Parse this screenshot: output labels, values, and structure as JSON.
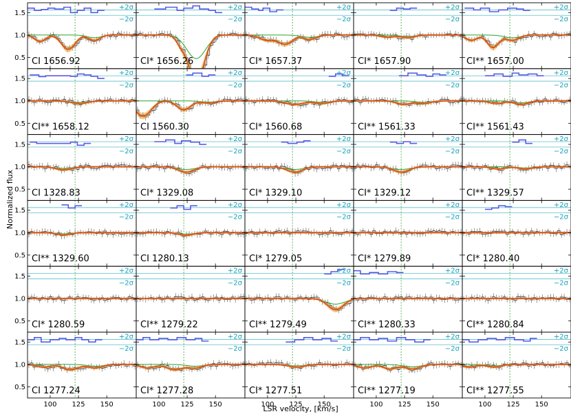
{
  "chart_data": {
    "type": "line",
    "xlabel": "LSR velocity, [km/s]",
    "ylabel": "Normalized flux",
    "xlim": [
      80,
      176
    ],
    "ylim": [
      0.25,
      1.72
    ],
    "xticks": [
      100,
      125,
      150
    ],
    "yticks": [
      0.5,
      1.0,
      1.5
    ],
    "grid": false,
    "sigma_labels": {
      "plus": "+2σ",
      "minus": "−2σ"
    },
    "residual_band": {
      "plus": 1.56,
      "minus": 1.44
    },
    "component_velocity": 122,
    "colors": {
      "data": "#333333",
      "model": "#d95319",
      "model_band": "#e8a33b",
      "component": "#2ca02c",
      "residual": "#5a5ae6",
      "sigma": "#17a2b8",
      "component_marker": "#2ca02c"
    },
    "rows": 6,
    "cols": 5,
    "panels": [
      {
        "label": "CI 1656.92",
        "lines": [
          {
            "v": 91,
            "d": 0.14,
            "w": 5
          },
          {
            "v": 116,
            "d": 0.32,
            "w": 6
          },
          {
            "v": 139,
            "d": 0.12,
            "w": 5
          }
        ],
        "resid": [
          [
            80,
            1.6
          ],
          [
            86,
            1.55
          ],
          [
            92,
            1.57
          ],
          [
            98,
            1.6
          ],
          [
            104,
            1.58
          ],
          [
            112,
            1.62
          ],
          [
            118,
            1.5
          ],
          [
            124,
            1.55
          ],
          [
            130,
            1.6
          ],
          [
            136,
            1.5
          ],
          [
            142,
            1.55
          ]
        ]
      },
      {
        "label": "CI* 1656.26",
        "lines": [
          {
            "v": 119,
            "d": 0.15,
            "w": 4
          },
          {
            "v": 133,
            "d": 1.05,
            "w": 7
          }
        ],
        "resid": [
          [
            96,
            1.58
          ],
          [
            106,
            1.62
          ],
          [
            116,
            1.55
          ],
          [
            122,
            1.6
          ],
          [
            130,
            1.65
          ],
          [
            136,
            1.58
          ],
          [
            144,
            1.55
          ],
          [
            150,
            1.5
          ]
        ]
      },
      {
        "label": "CI* 1657.37",
        "lines": [
          {
            "v": 100,
            "d": 0.12,
            "w": 7
          },
          {
            "v": 116,
            "d": 0.2,
            "w": 6
          },
          {
            "v": 137,
            "d": 0.1,
            "w": 6
          }
        ],
        "resid": [
          [
            80,
            1.62
          ],
          [
            86,
            1.58
          ],
          [
            92,
            1.55
          ],
          [
            96,
            1.6
          ],
          [
            102,
            1.52
          ],
          [
            108,
            1.56
          ]
        ]
      },
      {
        "label": "CI* 1657.90",
        "lines": [
          {
            "v": 110,
            "d": 0.05,
            "w": 6
          },
          {
            "v": 128,
            "d": 0.06,
            "w": 6
          }
        ],
        "resid": [
          [
            112,
            1.55
          ],
          [
            118,
            1.6
          ],
          [
            124,
            1.58
          ],
          [
            130,
            1.6
          ]
        ]
      },
      {
        "label": "CI** 1657.00",
        "lines": [
          {
            "v": 88,
            "d": 0.12,
            "w": 5
          },
          {
            "v": 107,
            "d": 0.28,
            "w": 5
          },
          {
            "v": 124,
            "d": 0.12,
            "w": 6
          }
        ],
        "resid": [
          [
            82,
            1.6
          ],
          [
            90,
            1.56
          ],
          [
            96,
            1.6
          ],
          [
            104,
            1.52
          ],
          [
            112,
            1.56
          ],
          [
            120,
            1.6
          ],
          [
            128,
            1.58
          ],
          [
            134,
            1.55
          ]
        ]
      },
      {
        "label": "CI** 1658.12",
        "lines": [
          {
            "v": 126,
            "d": 0.06,
            "w": 7
          }
        ],
        "resid": [
          [
            82,
            1.58
          ],
          [
            90,
            1.54
          ],
          [
            96,
            1.56
          ],
          [
            118,
            1.55
          ],
          [
            124,
            1.6
          ],
          [
            130,
            1.58
          ],
          [
            136,
            1.55
          ],
          [
            142,
            1.5
          ]
        ]
      },
      {
        "label": "CI 1560.30",
        "lines": [
          {
            "v": 86,
            "d": 0.34,
            "w": 7
          },
          {
            "v": 122,
            "d": 0.2,
            "w": 6
          },
          {
            "v": 144,
            "d": 0.05,
            "w": 6
          }
        ],
        "resid": [
          [
            124,
            1.58
          ],
          [
            130,
            1.62
          ],
          [
            138,
            1.55
          ],
          [
            144,
            1.58
          ]
        ]
      },
      {
        "label": "CI* 1560.68",
        "lines": [
          {
            "v": 124,
            "d": 0.08,
            "w": 8
          },
          {
            "v": 148,
            "d": 0.06,
            "w": 6
          }
        ],
        "resid": [
          [
            154,
            1.55
          ],
          [
            160,
            1.6
          ],
          [
            166,
            1.56
          ]
        ]
      },
      {
        "label": "CI** 1561.33",
        "lines": [
          {
            "v": 124,
            "d": 0.08,
            "w": 6
          },
          {
            "v": 142,
            "d": 0.06,
            "w": 6
          }
        ],
        "resid": [
          [
            120,
            1.56
          ],
          [
            128,
            1.62
          ],
          [
            136,
            1.58
          ],
          [
            144,
            1.55
          ],
          [
            150,
            1.6
          ],
          [
            156,
            1.58
          ]
        ]
      },
      {
        "label": "CI** 1561.43",
        "lines": [
          {
            "v": 110,
            "d": 0.06,
            "w": 6
          },
          {
            "v": 132,
            "d": 0.08,
            "w": 6
          }
        ],
        "resid": [
          [
            100,
            1.56
          ],
          [
            108,
            1.6
          ],
          [
            116,
            1.55
          ],
          [
            124,
            1.62
          ],
          [
            130,
            1.58
          ],
          [
            138,
            1.6
          ],
          [
            146,
            1.56
          ]
        ]
      },
      {
        "label": "CI 1328.83",
        "lines": [
          {
            "v": 112,
            "d": 0.07,
            "w": 7
          }
        ],
        "resid": [
          [
            82,
            1.55
          ],
          [
            88,
            1.52
          ],
          [
            118,
            1.55
          ],
          [
            124,
            1.48
          ],
          [
            130,
            1.52
          ]
        ]
      },
      {
        "label": "CI* 1329.08",
        "lines": [
          {
            "v": 124,
            "d": 0.12,
            "w": 7
          }
        ],
        "resid": [
          [
            96,
            1.56
          ],
          [
            106,
            1.6
          ],
          [
            114,
            1.52
          ],
          [
            120,
            1.58
          ],
          [
            128,
            1.55
          ],
          [
            136,
            1.5
          ]
        ]
      },
      {
        "label": "CI* 1329.10",
        "lines": [
          {
            "v": 124,
            "d": 0.12,
            "w": 7
          }
        ],
        "resid": [
          [
            112,
            1.55
          ],
          [
            118,
            1.52
          ],
          [
            126,
            1.55
          ],
          [
            132,
            1.58
          ]
        ]
      },
      {
        "label": "CI* 1329.12",
        "lines": [
          {
            "v": 122,
            "d": 0.12,
            "w": 7
          }
        ],
        "resid": [
          [
            112,
            1.55
          ],
          [
            118,
            1.52
          ],
          [
            124,
            1.56
          ],
          [
            130,
            1.52
          ]
        ]
      },
      {
        "label": "CI** 1329.57",
        "lines": [
          {
            "v": 112,
            "d": 0.05,
            "w": 6
          },
          {
            "v": 136,
            "d": 0.05,
            "w": 6
          }
        ],
        "resid": [
          [
            124,
            1.55
          ],
          [
            130,
            1.6
          ],
          [
            136,
            1.52
          ]
        ]
      },
      {
        "label": "CI** 1329.60",
        "lines": [
          {
            "v": 112,
            "d": 0.05,
            "w": 6
          }
        ],
        "resid": [
          [
            110,
            1.62
          ],
          [
            116,
            1.55
          ],
          [
            122,
            1.6
          ]
        ]
      },
      {
        "label": "CI 1280.13",
        "lines": [
          {
            "v": 124,
            "d": 0.06,
            "w": 6
          }
        ],
        "resid": [
          [
            110,
            1.55
          ],
          [
            116,
            1.6
          ],
          [
            122,
            1.52
          ],
          [
            128,
            1.6
          ]
        ]
      },
      {
        "label": "CI* 1279.05",
        "lines": [],
        "resid": []
      },
      {
        "label": "CI* 1279.89",
        "lines": [],
        "resid": []
      },
      {
        "label": "CI* 1280.40",
        "lines": [],
        "resid": [
          [
            100,
            1.52
          ],
          [
            106,
            1.55
          ],
          [
            112,
            1.6
          ],
          [
            118,
            1.58
          ]
        ]
      },
      {
        "label": "CI* 1280.59",
        "lines": [],
        "resid": []
      },
      {
        "label": "CI** 1279.22",
        "lines": [],
        "resid": []
      },
      {
        "label": "CI** 1279.49",
        "lines": [
          {
            "v": 160,
            "d": 0.25,
            "w": 7
          }
        ],
        "resid": [
          [
            150,
            1.55
          ],
          [
            156,
            1.6
          ],
          [
            162,
            1.65
          ]
        ]
      },
      {
        "label": "CI** 1280.33",
        "lines": [],
        "resid": [
          [
            80,
            1.62
          ],
          [
            86,
            1.55
          ],
          [
            94,
            1.58
          ],
          [
            102,
            1.55
          ],
          [
            110,
            1.6
          ],
          [
            118,
            1.58
          ]
        ]
      },
      {
        "label": "CI** 1280.84",
        "lines": [],
        "resid": []
      },
      {
        "label": "CI 1277.24",
        "lines": [
          {
            "v": 94,
            "d": 0.06,
            "w": 6
          },
          {
            "v": 118,
            "d": 0.12,
            "w": 7
          },
          {
            "v": 140,
            "d": 0.08,
            "w": 6
          }
        ],
        "resid": [
          [
            80,
            1.55
          ],
          [
            86,
            1.6
          ],
          [
            92,
            1.5
          ],
          [
            100,
            1.55
          ],
          [
            108,
            1.58
          ],
          [
            114,
            1.55
          ],
          [
            122,
            1.6
          ],
          [
            128,
            1.55
          ],
          [
            134,
            1.5
          ],
          [
            140,
            1.55
          ]
        ]
      },
      {
        "label": "CI* 1277.28",
        "lines": [
          {
            "v": 90,
            "d": 0.08,
            "w": 6
          },
          {
            "v": 114,
            "d": 0.12,
            "w": 7
          },
          {
            "v": 132,
            "d": 0.08,
            "w": 6
          }
        ],
        "resid": [
          [
            80,
            1.55
          ],
          [
            86,
            1.6
          ],
          [
            92,
            1.55
          ],
          [
            100,
            1.58
          ],
          [
            108,
            1.55
          ],
          [
            116,
            1.6
          ],
          [
            124,
            1.55
          ],
          [
            132,
            1.58
          ],
          [
            138,
            1.52
          ]
        ]
      },
      {
        "label": "CI* 1277.51",
        "lines": [
          {
            "v": 126,
            "d": 0.06,
            "w": 7
          }
        ],
        "resid": [
          [
            116,
            1.5
          ],
          [
            124,
            1.55
          ],
          [
            132,
            1.6
          ],
          [
            140,
            1.55
          ],
          [
            148,
            1.58
          ],
          [
            156,
            1.52
          ]
        ]
      },
      {
        "label": "CI** 1277.19",
        "lines": [
          {
            "v": 90,
            "d": 0.08,
            "w": 6
          },
          {
            "v": 112,
            "d": 0.1,
            "w": 6
          },
          {
            "v": 132,
            "d": 0.1,
            "w": 7
          }
        ],
        "resid": [
          [
            80,
            1.55
          ],
          [
            86,
            1.6
          ],
          [
            94,
            1.55
          ],
          [
            102,
            1.58
          ],
          [
            110,
            1.52
          ],
          [
            118,
            1.6
          ],
          [
            126,
            1.55
          ],
          [
            134,
            1.5
          ],
          [
            142,
            1.55
          ]
        ]
      },
      {
        "label": "CI** 1277.55",
        "lines": [
          {
            "v": 86,
            "d": 0.06,
            "w": 6
          },
          {
            "v": 108,
            "d": 0.06,
            "w": 6
          }
        ],
        "resid": [
          [
            80,
            1.55
          ],
          [
            86,
            1.5
          ],
          [
            94,
            1.55
          ],
          [
            102,
            1.58
          ],
          [
            110,
            1.55
          ],
          [
            118,
            1.6
          ],
          [
            126,
            1.55
          ],
          [
            134,
            1.52
          ],
          [
            140,
            1.58
          ]
        ]
      }
    ]
  }
}
